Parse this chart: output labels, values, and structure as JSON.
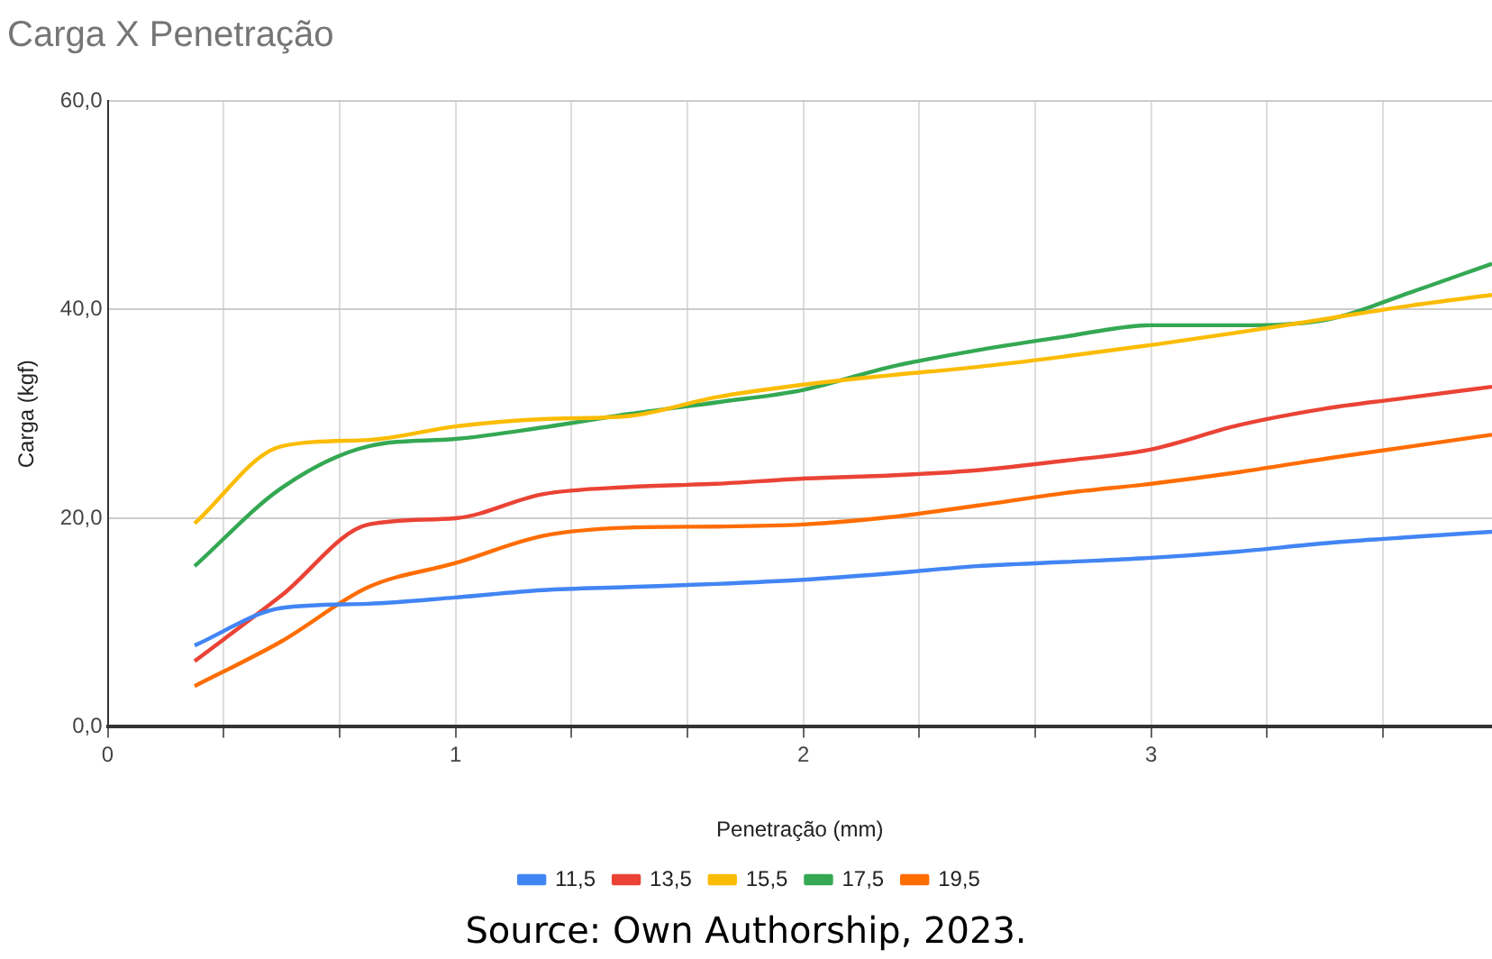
{
  "chart_data": {
    "type": "line",
    "title": "Carga X Penetração",
    "xlabel": "Penetração (mm)",
    "ylabel": "Carga (kgf)",
    "x": [
      0.25,
      0.5,
      0.75,
      1,
      1.25,
      1.5,
      1.75,
      2,
      2.25,
      2.5,
      2.75,
      3,
      3.25,
      3.5,
      3.75,
      3.98
    ],
    "series": [
      {
        "name": "11,5",
        "color": "#4285f4",
        "values": [
          7.8,
          11.4,
          11.8,
          12.4,
          13.1,
          13.4,
          13.7,
          14.1,
          14.7,
          15.4,
          15.8,
          16.2,
          16.8,
          17.6,
          18.2,
          18.7
        ]
      },
      {
        "name": "13,5",
        "color": "#ea4335",
        "values": [
          6.3,
          12.6,
          19.4,
          20,
          22.3,
          23,
          23.3,
          23.8,
          24.1,
          24.6,
          25.5,
          26.6,
          28.9,
          30.5,
          31.6,
          32.6
        ]
      },
      {
        "name": "15,5",
        "color": "#fbbc04",
        "values": [
          19.5,
          26.9,
          27.5,
          28.8,
          29.5,
          29.8,
          31.6,
          32.8,
          33.7,
          34.5,
          35.5,
          36.6,
          37.8,
          39.1,
          40.4,
          41.4
        ]
      },
      {
        "name": "17,5",
        "color": "#34a853",
        "values": [
          15.4,
          22.9,
          26.9,
          27.6,
          28.7,
          30,
          31.1,
          32.3,
          34.5,
          36.1,
          37.4,
          38.5,
          38.5,
          39,
          41.7,
          44.4
        ]
      },
      {
        "name": "19,5",
        "color": "#ff6d01",
        "values": [
          3.9,
          8.2,
          13.4,
          15.7,
          18.3,
          19.1,
          19.2,
          19.4,
          20.1,
          21.2,
          22.4,
          23.3,
          24.4,
          25.7,
          26.9,
          28
        ]
      }
    ],
    "xlim": [
      0,
      3.98
    ],
    "xticks": [
      0,
      {
        "value": 0.333,
        "label": null
      },
      {
        "value": 0.667,
        "label": null
      },
      1,
      {
        "value": 1.333,
        "label": null
      },
      {
        "value": 1.667,
        "label": null
      },
      2,
      {
        "value": 2.333,
        "label": null
      },
      {
        "value": 2.667,
        "label": null
      },
      3,
      {
        "value": 3.333,
        "label": null
      },
      {
        "value": 3.667,
        "label": null
      }
    ],
    "ylim": [
      0,
      60
    ],
    "yticks": [
      {
        "value": 0,
        "label": "0,0"
      },
      {
        "value": 20,
        "label": "20,0"
      },
      {
        "value": 40,
        "label": "40,0"
      },
      {
        "value": 60,
        "label": "60,0"
      }
    ],
    "grid": true,
    "legend": "bottom",
    "marker": "none",
    "line_style": "solid",
    "annotations": [
      "Source: Own Authorship, 2023."
    ]
  }
}
